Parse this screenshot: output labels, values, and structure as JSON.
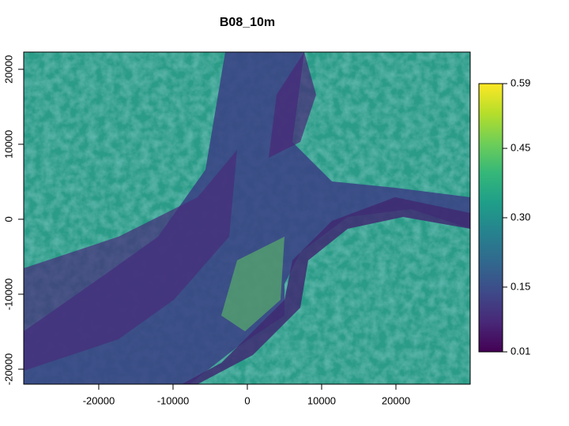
{
  "chart_data": {
    "type": "raster",
    "title": "B08_10m",
    "xlim": [
      -30100,
      30000
    ],
    "ylim": [
      -22000,
      22300
    ],
    "xticks": [
      -20000,
      -10000,
      0,
      10000,
      20000
    ],
    "yticks": [
      -20000,
      -10000,
      0,
      10000,
      20000
    ],
    "colorbar": {
      "lim": [
        0.01,
        0.59
      ],
      "ticks": [
        0.01,
        0.15,
        {
          "value": 0.3,
          "label": "0.30"
        },
        0.45,
        0.59
      ],
      "colors": [
        "#440154",
        "#482878",
        "#3e4a89",
        "#31688e",
        "#26828e",
        "#1f9e89",
        "#35b779",
        "#6ece58",
        "#b5de2b",
        "#fde725"
      ]
    }
  }
}
